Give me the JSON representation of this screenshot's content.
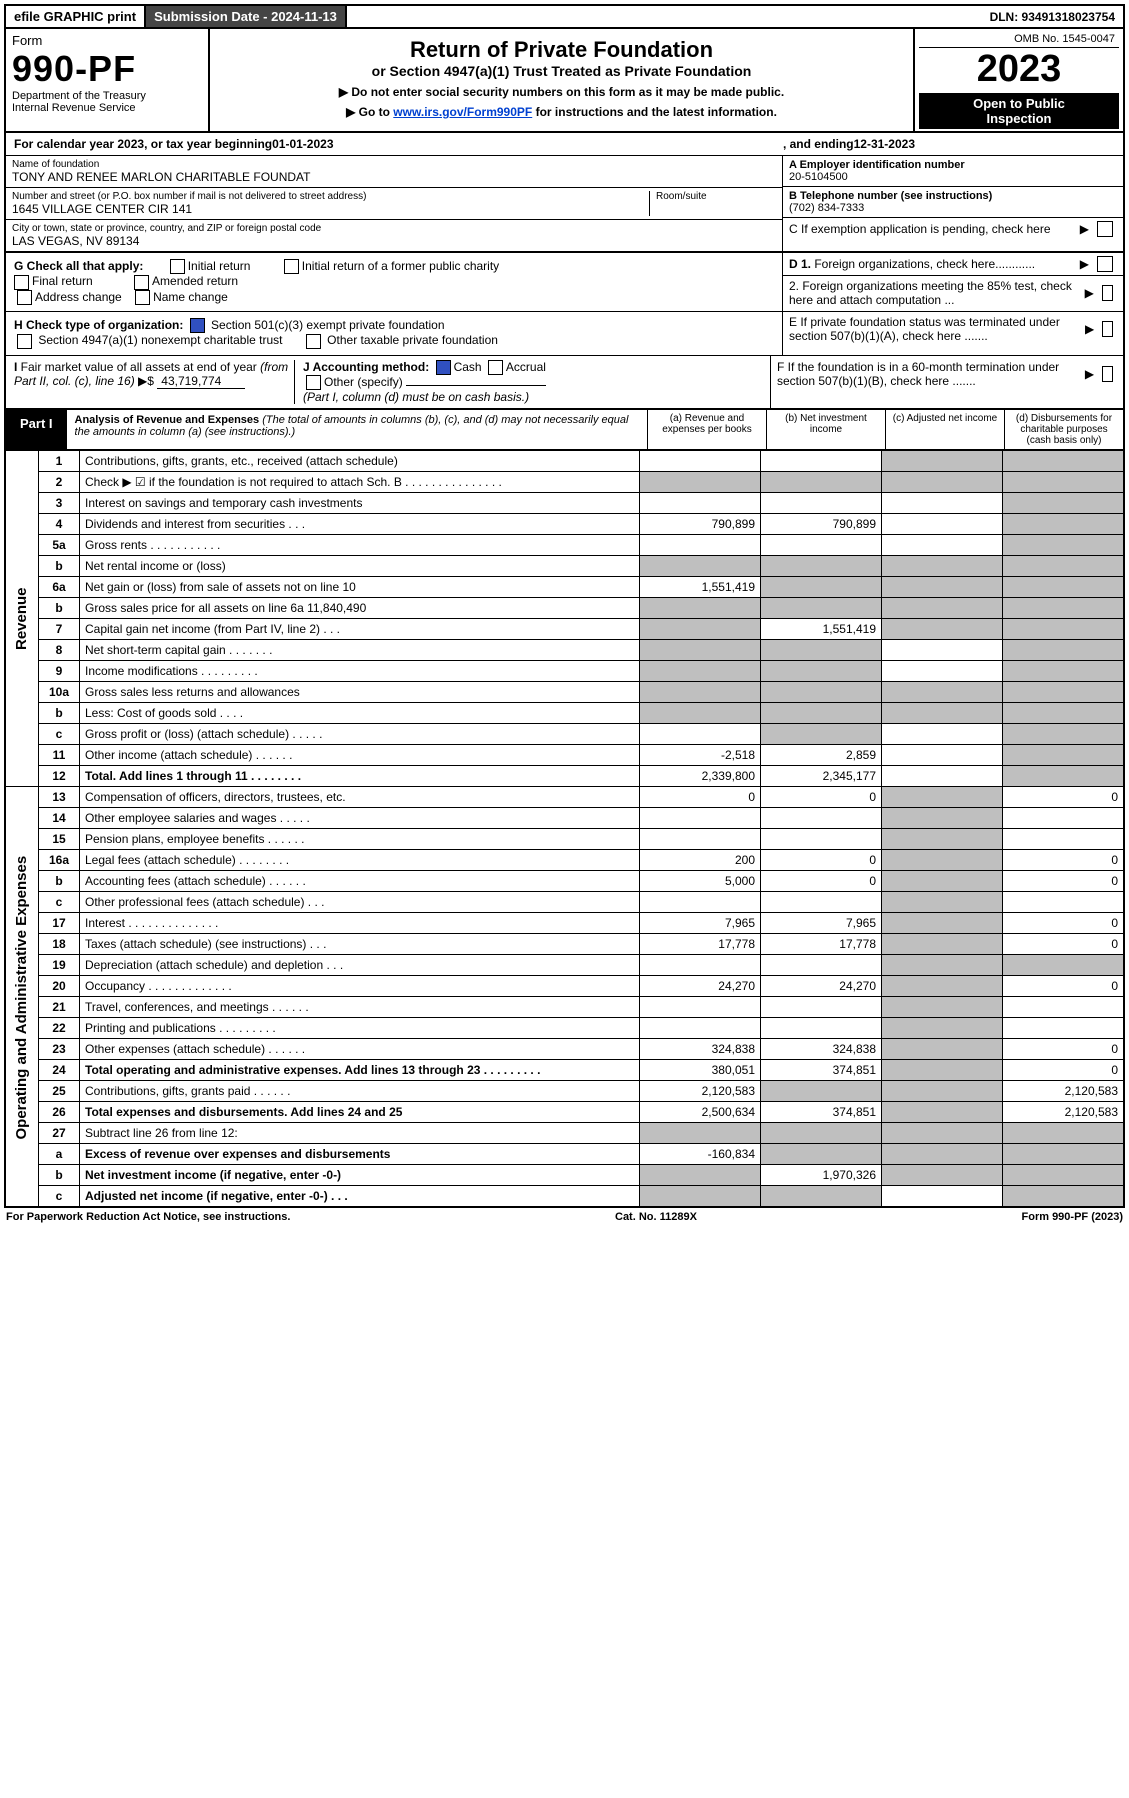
{
  "topbar": {
    "efile": "efile GRAPHIC print",
    "submission": "Submission Date - 2024-11-13",
    "dln": "DLN: 93491318023754"
  },
  "header": {
    "form_word": "Form",
    "form_num": "990-PF",
    "dept": "Department of the Treasury",
    "irs": "Internal Revenue Service",
    "title": "Return of Private Foundation",
    "subtitle": "or Section 4947(a)(1) Trust Treated as Private Foundation",
    "note1": "▶ Do not enter social security numbers on this form as it may be made public.",
    "note2_prefix": "▶ Go to ",
    "note2_link": "www.irs.gov/Form990PF",
    "note2_suffix": " for instructions and the latest information.",
    "omb": "OMB No. 1545-0047",
    "year": "2023",
    "inspection1": "Open to Public",
    "inspection2": "Inspection"
  },
  "taxyear": {
    "prefix": "For calendar year 2023, or tax year beginning ",
    "begin": "01-01-2023",
    "mid": " , and ending ",
    "end": "12-31-2023"
  },
  "id": {
    "name_label": "Name of foundation",
    "name": "TONY AND RENEE MARLON CHARITABLE FOUNDAT",
    "addr_label": "Number and street (or P.O. box number if mail is not delivered to street address)",
    "room_label": "Room/suite",
    "addr": "1645 VILLAGE CENTER CIR 141",
    "city_label": "City or town, state or province, country, and ZIP or foreign postal code",
    "city": "LAS VEGAS, NV  89134",
    "A_label": "A Employer identification number",
    "A_value": "20-5104500",
    "B_label": "B Telephone number (see instructions)",
    "B_value": "(702) 834-7333",
    "C_label": "C If exemption application is pending, check here",
    "D1": "D 1. Foreign organizations, check here............",
    "D2": "2. Foreign organizations meeting the 85% test, check here and attach computation ...",
    "E": "E  If private foundation status was terminated under section 507(b)(1)(A), check here .......",
    "F": "F  If the foundation is in a 60-month termination under section 507(b)(1)(B), check here ......."
  },
  "G": {
    "label": "G Check all that apply:",
    "opts": [
      "Initial return",
      "Final return",
      "Address change",
      "Initial return of a former public charity",
      "Amended return",
      "Name change"
    ]
  },
  "H": {
    "label": "H Check type of organization:",
    "opt1": "Section 501(c)(3) exempt private foundation",
    "opt2": "Section 4947(a)(1) nonexempt charitable trust",
    "opt3": "Other taxable private foundation"
  },
  "I": {
    "text": "I Fair market value of all assets at end of year (from Part II, col. (c), line 16) ▶$ ",
    "value": "43,719,774"
  },
  "J": {
    "label": "J Accounting method:",
    "cash": "Cash",
    "accrual": "Accrual",
    "other": "Other (specify)",
    "note": "(Part I, column (d) must be on cash basis.)"
  },
  "partI": {
    "tab": "Part I",
    "title": "Analysis of Revenue and Expenses",
    "note": " (The total of amounts in columns (b), (c), and (d) may not necessarily equal the amounts in column (a) (see instructions).)",
    "cols": {
      "a": "(a)  Revenue and expenses per books",
      "b": "(b)  Net investment income",
      "c": "(c)  Adjusted net income",
      "d": "(d)  Disbursements for charitable purposes (cash basis only)"
    }
  },
  "side": {
    "revenue": "Revenue",
    "expenses": "Operating and Administrative Expenses"
  },
  "rows": [
    {
      "n": "1",
      "d": "Contributions, gifts, grants, etc., received (attach schedule)",
      "a": "",
      "b": "",
      "c": "s",
      "dd": "s"
    },
    {
      "n": "2",
      "d": "Check ▶ ☑ if the foundation is not required to attach Sch. B        .  .  .  .  .  .  .  .  .  .  .  .  .  .  .",
      "a": "s",
      "b": "s",
      "c": "s",
      "dd": "s"
    },
    {
      "n": "3",
      "d": "Interest on savings and temporary cash investments",
      "a": "",
      "b": "",
      "c": "",
      "dd": "s"
    },
    {
      "n": "4",
      "d": "Dividends and interest from securities   .   .   .",
      "a": "790,899",
      "b": "790,899",
      "c": "",
      "dd": "s"
    },
    {
      "n": "5a",
      "d": "Gross rents   .  .  .  .  .  .  .  .  .  .  .",
      "a": "",
      "b": "",
      "c": "",
      "dd": "s"
    },
    {
      "n": "b",
      "d": "Net rental income or (loss)  ",
      "a": "s",
      "b": "s",
      "c": "s",
      "dd": "s"
    },
    {
      "n": "6a",
      "d": "Net gain or (loss) from sale of assets not on line 10",
      "a": "1,551,419",
      "b": "s",
      "c": "s",
      "dd": "s"
    },
    {
      "n": "b",
      "d": "Gross sales price for all assets on line 6a         11,840,490",
      "a": "s",
      "b": "s",
      "c": "s",
      "dd": "s"
    },
    {
      "n": "7",
      "d": "Capital gain net income (from Part IV, line 2)   .  .  .",
      "a": "s",
      "b": "1,551,419",
      "c": "s",
      "dd": "s"
    },
    {
      "n": "8",
      "d": "Net short-term capital gain  .  .  .  .  .  .  .",
      "a": "s",
      "b": "s",
      "c": "",
      "dd": "s"
    },
    {
      "n": "9",
      "d": "Income modifications  .  .  .  .  .  .  .  .  .",
      "a": "s",
      "b": "s",
      "c": "",
      "dd": "s"
    },
    {
      "n": "10a",
      "d": "Gross sales less returns and allowances",
      "a": "s",
      "b": "s",
      "c": "s",
      "dd": "s"
    },
    {
      "n": "b",
      "d": "Less: Cost of goods sold   .  .  .  .",
      "a": "s",
      "b": "s",
      "c": "s",
      "dd": "s"
    },
    {
      "n": "c",
      "d": "Gross profit or (loss) (attach schedule)   .  .  .  .  .",
      "a": "",
      "b": "s",
      "c": "",
      "dd": "s"
    },
    {
      "n": "11",
      "d": "Other income (attach schedule)   .  .  .  .  .  .",
      "a": "-2,518",
      "b": "2,859",
      "c": "",
      "dd": "s"
    },
    {
      "n": "12",
      "d": "Total. Add lines 1 through 11  .  .  .  .  .  .  .  .",
      "a": "2,339,800",
      "b": "2,345,177",
      "c": "",
      "dd": "s",
      "bold": true
    },
    {
      "n": "13",
      "d": "Compensation of officers, directors, trustees, etc.",
      "a": "0",
      "b": "0",
      "c": "s",
      "dd": "0"
    },
    {
      "n": "14",
      "d": "Other employee salaries and wages   .  .  .  .  .",
      "a": "",
      "b": "",
      "c": "s",
      "dd": ""
    },
    {
      "n": "15",
      "d": "Pension plans, employee benefits  .  .  .  .  .  .",
      "a": "",
      "b": "",
      "c": "s",
      "dd": ""
    },
    {
      "n": "16a",
      "d": "Legal fees (attach schedule)  .  .  .  .  .  .  .  .",
      "a": "200",
      "b": "0",
      "c": "s",
      "dd": "0"
    },
    {
      "n": "b",
      "d": "Accounting fees (attach schedule)  .  .  .  .  .  .",
      "a": "5,000",
      "b": "0",
      "c": "s",
      "dd": "0"
    },
    {
      "n": "c",
      "d": "Other professional fees (attach schedule)   .  .  .",
      "a": "",
      "b": "",
      "c": "s",
      "dd": ""
    },
    {
      "n": "17",
      "d": "Interest  .  .  .  .  .  .  .  .  .  .  .  .  .  .",
      "a": "7,965",
      "b": "7,965",
      "c": "s",
      "dd": "0"
    },
    {
      "n": "18",
      "d": "Taxes (attach schedule) (see instructions)   .  .  .",
      "a": "17,778",
      "b": "17,778",
      "c": "s",
      "dd": "0"
    },
    {
      "n": "19",
      "d": "Depreciation (attach schedule) and depletion   .  .  .",
      "a": "",
      "b": "",
      "c": "s",
      "dd": "s"
    },
    {
      "n": "20",
      "d": "Occupancy  .  .  .  .  .  .  .  .  .  .  .  .  .",
      "a": "24,270",
      "b": "24,270",
      "c": "s",
      "dd": "0"
    },
    {
      "n": "21",
      "d": "Travel, conferences, and meetings  .  .  .  .  .  .",
      "a": "",
      "b": "",
      "c": "s",
      "dd": ""
    },
    {
      "n": "22",
      "d": "Printing and publications  .  .  .  .  .  .  .  .  .",
      "a": "",
      "b": "",
      "c": "s",
      "dd": ""
    },
    {
      "n": "23",
      "d": "Other expenses (attach schedule)  .  .  .  .  .  .",
      "a": "324,838",
      "b": "324,838",
      "c": "s",
      "dd": "0"
    },
    {
      "n": "24",
      "d": "Total operating and administrative expenses. Add lines 13 through 23  .  .  .  .  .  .  .  .  .",
      "a": "380,051",
      "b": "374,851",
      "c": "s",
      "dd": "0",
      "bold": true
    },
    {
      "n": "25",
      "d": "Contributions, gifts, grants paid   .  .  .  .  .  .",
      "a": "2,120,583",
      "b": "s",
      "c": "s",
      "dd": "2,120,583"
    },
    {
      "n": "26",
      "d": "Total expenses and disbursements. Add lines 24 and 25",
      "a": "2,500,634",
      "b": "374,851",
      "c": "s",
      "dd": "2,120,583",
      "bold": true
    },
    {
      "n": "27",
      "d": "Subtract line 26 from line 12:",
      "a": "s",
      "b": "s",
      "c": "s",
      "dd": "s"
    },
    {
      "n": "a",
      "d": "Excess of revenue over expenses and disbursements",
      "a": "-160,834",
      "b": "s",
      "c": "s",
      "dd": "s",
      "bold": true
    },
    {
      "n": "b",
      "d": "Net investment income (if negative, enter -0-)",
      "a": "s",
      "b": "1,970,326",
      "c": "s",
      "dd": "s",
      "bold": true
    },
    {
      "n": "c",
      "d": "Adjusted net income (if negative, enter -0-)  .  .  .",
      "a": "s",
      "b": "s",
      "c": "",
      "dd": "s",
      "bold": true
    }
  ],
  "footer": {
    "left": "For Paperwork Reduction Act Notice, see instructions.",
    "mid": "Cat. No. 11289X",
    "right": "Form 990-PF (2023)"
  }
}
